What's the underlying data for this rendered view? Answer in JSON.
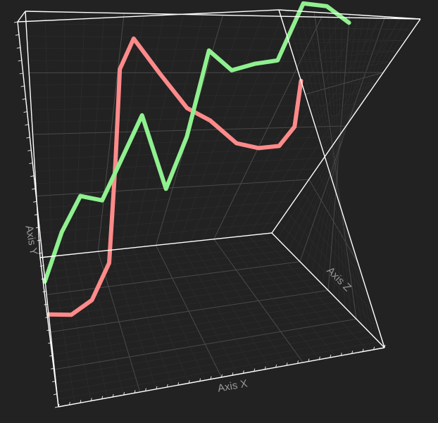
{
  "chart_data": {
    "type": "line",
    "dimensions": 3,
    "title": "",
    "xlabel": "Axis X",
    "ylabel": "Axis Y",
    "zlabel": "Axis Z",
    "xlim": [
      0,
      14
    ],
    "ylim": [
      0,
      10
    ],
    "zlim": [
      0,
      2
    ],
    "grid": true,
    "legend": "none",
    "series": [
      {
        "color": "#ff8a8a",
        "z": 0,
        "points": [
          [
            0,
            2.4
          ],
          [
            1,
            2.3
          ],
          [
            2,
            2.6
          ],
          [
            3,
            3.5
          ],
          [
            4,
            6.1
          ],
          [
            5,
            8.6
          ],
          [
            6,
            9.4
          ],
          [
            7,
            8.4
          ],
          [
            8,
            7.4
          ],
          [
            9,
            7.0
          ],
          [
            10,
            6.3
          ],
          [
            11,
            6.1
          ],
          [
            12,
            6.1
          ],
          [
            13,
            6.6
          ],
          [
            14,
            7.9
          ]
        ]
      },
      {
        "color": "#8ff08f",
        "z": 1,
        "points": [
          [
            0,
            1.6
          ],
          [
            1,
            3.1
          ],
          [
            2,
            4.2
          ],
          [
            3,
            4.0
          ],
          [
            4,
            5.3
          ],
          [
            5,
            6.7
          ],
          [
            6,
            4.2
          ],
          [
            7,
            5.9
          ],
          [
            8,
            8.8
          ],
          [
            9,
            8.1
          ],
          [
            10,
            8.3
          ],
          [
            11,
            8.4
          ],
          [
            12,
            10.4
          ],
          [
            13,
            10.3
          ],
          [
            14,
            9.7
          ]
        ]
      }
    ],
    "colors": {
      "background": "#222222",
      "frame": "#ffffff",
      "grid": "#4a4a4a",
      "label": "#9a9a9a"
    }
  }
}
